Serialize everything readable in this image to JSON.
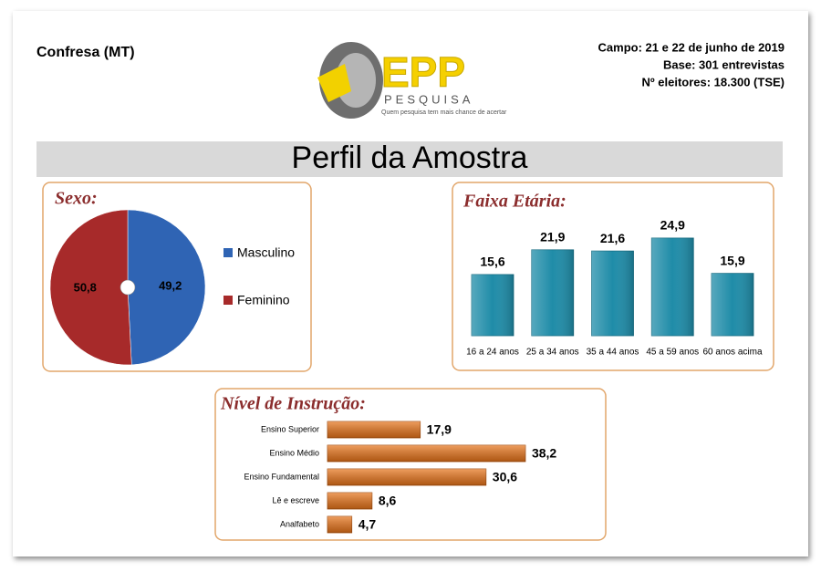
{
  "header": {
    "location": "Confresa (MT)",
    "field": "Campo: 21 e 22 de junho de 2019",
    "base": "Base: 301 entrevistas",
    "voters": "Nº eleitores: 18.300  (TSE)",
    "logo": {
      "name": "EPP",
      "sub": "PESQUISA",
      "tagline": "Quem pesquisa tem mais chance de acertar"
    },
    "banner": "Perfil da Amostra"
  },
  "chart_data": [
    {
      "type": "pie",
      "title": "Sexo:",
      "categories": [
        "Masculino",
        "Feminino"
      ],
      "values": [
        49.2,
        50.8
      ],
      "value_labels": [
        "49,2",
        "50,8"
      ],
      "colors": [
        "#2f64b4",
        "#a72a2a"
      ]
    },
    {
      "type": "bar",
      "title": "Faixa Etária:",
      "categories": [
        "16 a 24 anos",
        "25 a 34 anos",
        "35 a 44 anos",
        "45 a 59 anos",
        "60 anos acima"
      ],
      "values": [
        15.6,
        21.9,
        21.6,
        24.9,
        15.9
      ],
      "value_labels": [
        "15,6",
        "21,9",
        "21,6",
        "24,9",
        "15,9"
      ],
      "color": "#1f8ca8"
    },
    {
      "type": "barh",
      "title": "Nível de Instrução:",
      "categories": [
        "Ensino Superior",
        "Ensino Médio",
        "Ensino Fundamental",
        "Lê e escreve",
        "Analfabeto"
      ],
      "values": [
        17.9,
        38.2,
        30.6,
        8.6,
        4.7
      ],
      "value_labels": [
        "17,9",
        "38,2",
        "30,6",
        "8,6",
        "4,7"
      ],
      "color": "#e8741a"
    }
  ]
}
